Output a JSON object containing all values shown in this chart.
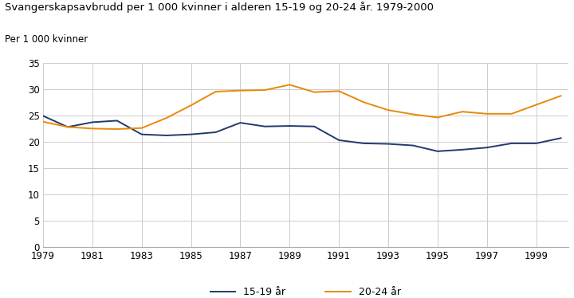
{
  "title": "Svangerskapsavbrudd per 1 000 kvinner i alderen 15-19 og 20-24 år. 1979-2000",
  "ylabel": "Per 1 000 kvinner",
  "years": [
    1979,
    1980,
    1981,
    1982,
    1983,
    1984,
    1985,
    1986,
    1987,
    1988,
    1989,
    1990,
    1991,
    1992,
    1993,
    1994,
    1995,
    1996,
    1997,
    1998,
    1999,
    2000
  ],
  "series_15_19": [
    24.9,
    22.8,
    23.7,
    24.0,
    21.4,
    21.2,
    21.4,
    21.8,
    23.6,
    22.9,
    23.0,
    22.9,
    20.3,
    19.7,
    19.6,
    19.3,
    18.2,
    18.5,
    18.9,
    19.7,
    19.7,
    20.7
  ],
  "series_20_24": [
    23.8,
    22.8,
    22.5,
    22.4,
    22.6,
    24.5,
    26.9,
    29.5,
    29.7,
    29.8,
    30.8,
    29.4,
    29.6,
    27.5,
    26.0,
    25.2,
    24.6,
    25.7,
    25.3,
    25.3,
    27.0,
    28.7
  ],
  "color_15_19": "#1f3a6e",
  "color_20_24": "#e8890a",
  "label_15_19": "15-19 år",
  "label_20_24": "20-24 år",
  "ylim": [
    0,
    35
  ],
  "yticks": [
    0,
    5,
    10,
    15,
    20,
    25,
    30,
    35
  ],
  "xticks": [
    1979,
    1981,
    1983,
    1985,
    1987,
    1989,
    1991,
    1993,
    1995,
    1997,
    1999
  ],
  "title_color": "#000000",
  "grid_color": "#cccccc",
  "background_color": "#ffffff",
  "top_bar_color": "#3a9a96",
  "title_fontsize": 9.5,
  "ylabel_fontsize": 8.5,
  "tick_fontsize": 8.5,
  "legend_fontsize": 9
}
